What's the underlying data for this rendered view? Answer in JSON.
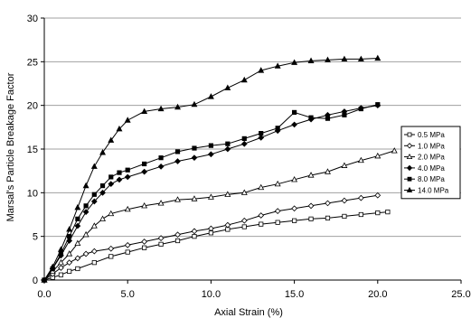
{
  "chart_data": {
    "type": "line",
    "title": "",
    "xlabel": "Axial Strain (%)",
    "ylabel": "Marsal's Particle Breakage Factor",
    "xlim": [
      0,
      25
    ],
    "ylim": [
      0,
      30
    ],
    "x_ticks": [
      "0.0",
      "5.0",
      "10.0",
      "15.0",
      "20.0",
      "25.0"
    ],
    "y_ticks": [
      "0",
      "5",
      "10",
      "15",
      "20",
      "25",
      "30"
    ],
    "grid": "horizontal",
    "legend_position": "right",
    "series": [
      {
        "name": "0.5 MPa",
        "marker": "square-open",
        "points": [
          [
            0,
            0
          ],
          [
            0.5,
            0.3
          ],
          [
            1,
            0.6
          ],
          [
            1.5,
            1
          ],
          [
            2,
            1.3
          ],
          [
            3,
            2
          ],
          [
            4,
            2.7
          ],
          [
            5,
            3.2
          ],
          [
            6,
            3.7
          ],
          [
            7,
            4.1
          ],
          [
            8,
            4.5
          ],
          [
            9,
            5
          ],
          [
            10,
            5.4
          ],
          [
            11,
            5.8
          ],
          [
            12,
            6.1
          ],
          [
            13,
            6.4
          ],
          [
            14,
            6.6
          ],
          [
            15,
            6.8
          ],
          [
            16,
            7
          ],
          [
            17,
            7.1
          ],
          [
            18,
            7.3
          ],
          [
            19,
            7.5
          ],
          [
            20,
            7.7
          ],
          [
            20.6,
            7.8
          ]
        ]
      },
      {
        "name": "1.0 MPa",
        "marker": "diamond-open",
        "points": [
          [
            0,
            0
          ],
          [
            0.5,
            0.7
          ],
          [
            1,
            1.4
          ],
          [
            1.5,
            2
          ],
          [
            2,
            2.5
          ],
          [
            2.5,
            3
          ],
          [
            3,
            3.3
          ],
          [
            4,
            3.6
          ],
          [
            5,
            4
          ],
          [
            6,
            4.4
          ],
          [
            7,
            4.8
          ],
          [
            8,
            5.2
          ],
          [
            9,
            5.6
          ],
          [
            10,
            5.9
          ],
          [
            11,
            6.3
          ],
          [
            12,
            6.8
          ],
          [
            13,
            7.4
          ],
          [
            14,
            7.9
          ],
          [
            15,
            8.2
          ],
          [
            16,
            8.5
          ],
          [
            17,
            8.8
          ],
          [
            18,
            9.1
          ],
          [
            19,
            9.4
          ],
          [
            20,
            9.7
          ]
        ]
      },
      {
        "name": "2.0 MPa",
        "marker": "triangle-open",
        "points": [
          [
            0,
            0
          ],
          [
            0.5,
            1
          ],
          [
            1,
            2
          ],
          [
            1.5,
            3
          ],
          [
            2,
            4.2
          ],
          [
            2.5,
            5.2
          ],
          [
            3,
            6.2
          ],
          [
            3.5,
            7
          ],
          [
            4,
            7.6
          ],
          [
            5,
            8.1
          ],
          [
            6,
            8.5
          ],
          [
            7,
            8.8
          ],
          [
            8,
            9.2
          ],
          [
            9,
            9.3
          ],
          [
            10,
            9.5
          ],
          [
            11,
            9.8
          ],
          [
            12,
            10
          ],
          [
            13,
            10.6
          ],
          [
            14,
            11
          ],
          [
            15,
            11.5
          ],
          [
            16,
            12
          ],
          [
            17,
            12.4
          ],
          [
            18,
            13.1
          ],
          [
            19,
            13.7
          ],
          [
            20,
            14.2
          ],
          [
            21,
            14.8
          ]
        ]
      },
      {
        "name": "4.0 MPa",
        "marker": "diamond-filled",
        "points": [
          [
            0,
            0
          ],
          [
            0.5,
            1.3
          ],
          [
            1,
            2.8
          ],
          [
            1.5,
            4.5
          ],
          [
            2,
            6.2
          ],
          [
            2.5,
            7.8
          ],
          [
            3,
            9
          ],
          [
            3.5,
            10
          ],
          [
            4,
            11
          ],
          [
            4.5,
            11.5
          ],
          [
            5,
            11.8
          ],
          [
            6,
            12.4
          ],
          [
            7,
            13
          ],
          [
            8,
            13.6
          ],
          [
            9,
            14
          ],
          [
            10,
            14.4
          ],
          [
            11,
            15
          ],
          [
            12,
            15.6
          ],
          [
            13,
            16.3
          ],
          [
            14,
            17.1
          ],
          [
            15,
            17.8
          ],
          [
            16,
            18.4
          ],
          [
            17,
            18.9
          ],
          [
            18,
            19.3
          ],
          [
            19,
            19.7
          ],
          [
            20,
            20
          ]
        ]
      },
      {
        "name": "8.0 MPa",
        "marker": "square-filled",
        "points": [
          [
            0,
            0
          ],
          [
            0.5,
            1.3
          ],
          [
            1,
            3
          ],
          [
            1.5,
            5
          ],
          [
            2,
            7
          ],
          [
            2.5,
            8.5
          ],
          [
            3,
            9.8
          ],
          [
            3.5,
            10.8
          ],
          [
            4,
            11.8
          ],
          [
            4.5,
            12.3
          ],
          [
            5,
            12.6
          ],
          [
            6,
            13.3
          ],
          [
            7,
            14
          ],
          [
            8,
            14.7
          ],
          [
            9,
            15.1
          ],
          [
            10,
            15.4
          ],
          [
            11,
            15.6
          ],
          [
            12,
            16.2
          ],
          [
            13,
            16.8
          ],
          [
            14,
            17.4
          ],
          [
            15,
            19.2
          ],
          [
            16,
            18.6
          ],
          [
            17,
            18.5
          ],
          [
            18,
            18.9
          ],
          [
            19,
            19.6
          ],
          [
            20,
            20.1
          ]
        ]
      },
      {
        "name": "14.0 MPa",
        "marker": "triangle-filled",
        "points": [
          [
            0,
            0
          ],
          [
            0.5,
            1.5
          ],
          [
            1,
            3.5
          ],
          [
            1.5,
            5.8
          ],
          [
            2,
            8.3
          ],
          [
            2.5,
            10.8
          ],
          [
            3,
            13
          ],
          [
            3.5,
            14.6
          ],
          [
            4,
            16
          ],
          [
            4.5,
            17.3
          ],
          [
            5,
            18.3
          ],
          [
            6,
            19.3
          ],
          [
            7,
            19.6
          ],
          [
            8,
            19.8
          ],
          [
            9,
            20.1
          ],
          [
            10,
            21
          ],
          [
            11,
            22
          ],
          [
            12,
            22.9
          ],
          [
            13,
            24
          ],
          [
            14,
            24.5
          ],
          [
            15,
            24.9
          ],
          [
            16,
            25.1
          ],
          [
            17,
            25.2
          ],
          [
            18,
            25.3
          ],
          [
            19,
            25.3
          ],
          [
            20,
            25.4
          ]
        ]
      }
    ]
  }
}
